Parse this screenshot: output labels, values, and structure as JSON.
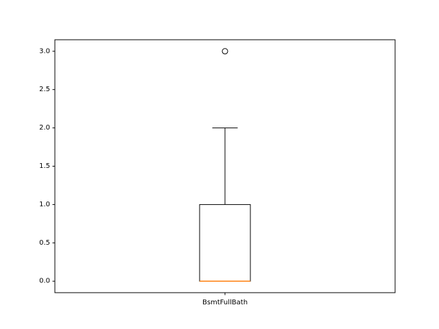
{
  "chart_data": {
    "type": "box",
    "title": "",
    "xlabel": "",
    "ylabel": "",
    "categories": [
      "BsmtFullBath"
    ],
    "ylim": [
      -0.15,
      3.15
    ],
    "yticks": [
      0.0,
      0.5,
      1.0,
      1.5,
      2.0,
      2.5,
      3.0
    ],
    "ytick_labels": [
      "0.0",
      "0.5",
      "1.0",
      "1.5",
      "2.0",
      "2.5",
      "3.0"
    ],
    "grid": false,
    "boxes": [
      {
        "category": "BsmtFullBath",
        "whisker_low": 0.0,
        "q1": 0.0,
        "median": 0.0,
        "q3": 1.0,
        "whisker_high": 2.0,
        "outliers": [
          3.0
        ]
      }
    ],
    "colors": {
      "box": "#000000",
      "median": "#ff7f0e",
      "axes": "#000000"
    }
  }
}
